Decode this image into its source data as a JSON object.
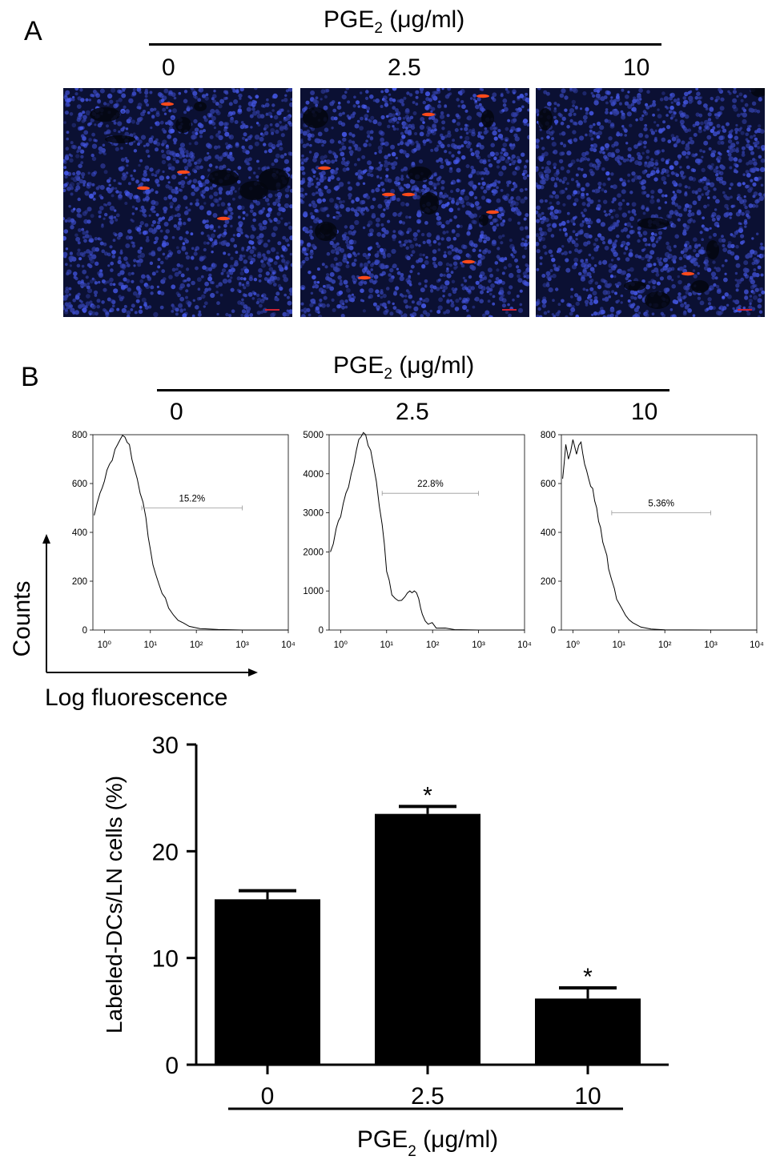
{
  "panel_a": {
    "letter": "A",
    "header": {
      "text": "PGE",
      "sub": "2",
      "unit": " (μg/ml)"
    },
    "doses": [
      "0",
      "2.5",
      "10"
    ]
  },
  "panel_b": {
    "letter": "B",
    "header": {
      "text": "PGE",
      "sub": "2",
      "unit": " (μg/ml)"
    },
    "doses": [
      "0",
      "2.5",
      "10"
    ],
    "ylabel": "Counts",
    "xlabel": "Log fluorescence"
  },
  "chart_data": [
    {
      "type": "line",
      "name": "histogram-0",
      "dose": "0",
      "ylim": [
        0,
        800
      ],
      "yticks": [
        "0",
        "200",
        "400",
        "600",
        "800"
      ],
      "xticks": [
        "10⁰",
        "10¹",
        "10²",
        "10³",
        "10⁴"
      ],
      "xscale": "log",
      "gate_label": "15.2%",
      "gate_range": [
        6.5,
        1000
      ],
      "gate_y": 500,
      "x": [
        0.6,
        0.8,
        1,
        1.3,
        1.7,
        2.2,
        2.8,
        3.5,
        4.5,
        6,
        8,
        10,
        13,
        18,
        25,
        40,
        70,
        120,
        300,
        1000,
        10000
      ],
      "y": [
        470,
        560,
        610,
        680,
        740,
        780,
        790,
        760,
        660,
        560,
        460,
        330,
        230,
        150,
        90,
        40,
        15,
        6,
        2,
        0,
        0
      ]
    },
    {
      "type": "line",
      "name": "histogram-2.5",
      "dose": "2.5",
      "ylim": [
        0,
        5000
      ],
      "yticks": [
        "0",
        "1000",
        "2000",
        "3000",
        "4000",
        "5000"
      ],
      "xticks": [
        "10⁰",
        "10¹",
        "10²",
        "10³",
        "10⁴"
      ],
      "xscale": "log",
      "gate_label": "22.8%",
      "gate_range": [
        8,
        1000
      ],
      "gate_y": 3500,
      "x": [
        0.6,
        0.8,
        1,
        1.3,
        1.7,
        2.2,
        2.8,
        3.5,
        4.5,
        6,
        8,
        10,
        13,
        18,
        25,
        32,
        40,
        50,
        60,
        80,
        120,
        300,
        1000,
        10000
      ],
      "y": [
        2000,
        2600,
        2900,
        3500,
        4000,
        4600,
        4950,
        5000,
        4600,
        3800,
        2700,
        1500,
        900,
        750,
        850,
        1000,
        1000,
        800,
        400,
        150,
        50,
        10,
        0,
        0
      ]
    },
    {
      "type": "line",
      "name": "histogram-10",
      "dose": "10",
      "ylim": [
        0,
        800
      ],
      "yticks": [
        "0",
        "200",
        "400",
        "600",
        "800"
      ],
      "xticks": [
        "10⁰",
        "10¹",
        "10²",
        "10³",
        "10⁴"
      ],
      "xscale": "log",
      "gate_label": "5.36%",
      "gate_range": [
        7,
        1000
      ],
      "gate_y": 480,
      "x": [
        0.6,
        0.7,
        0.8,
        1,
        1.2,
        1.5,
        1.8,
        2.2,
        2.7,
        3.3,
        4,
        5,
        6,
        8,
        10,
        14,
        20,
        30,
        50,
        100,
        1000,
        10000
      ],
      "y": [
        620,
        760,
        700,
        780,
        720,
        770,
        680,
        620,
        580,
        500,
        420,
        330,
        250,
        170,
        110,
        60,
        30,
        12,
        4,
        1,
        0,
        0
      ]
    },
    {
      "type": "bar",
      "name": "labeled-dcs",
      "categories": [
        "0",
        "2.5",
        "10"
      ],
      "values": [
        15.5,
        23.5,
        6.2
      ],
      "errors": [
        0.8,
        0.7,
        1.0
      ],
      "significance": [
        "",
        "*",
        "*"
      ],
      "ylim": [
        0,
        30
      ],
      "yticks": [
        "0",
        "10",
        "20",
        "30"
      ],
      "ylabel": "Labeled-DCs/LN cells (%)",
      "xlabel_text": "PGE",
      "xlabel_sub": "2",
      "xlabel_unit": " (μg/ml)",
      "bar_color": "#000000"
    }
  ]
}
